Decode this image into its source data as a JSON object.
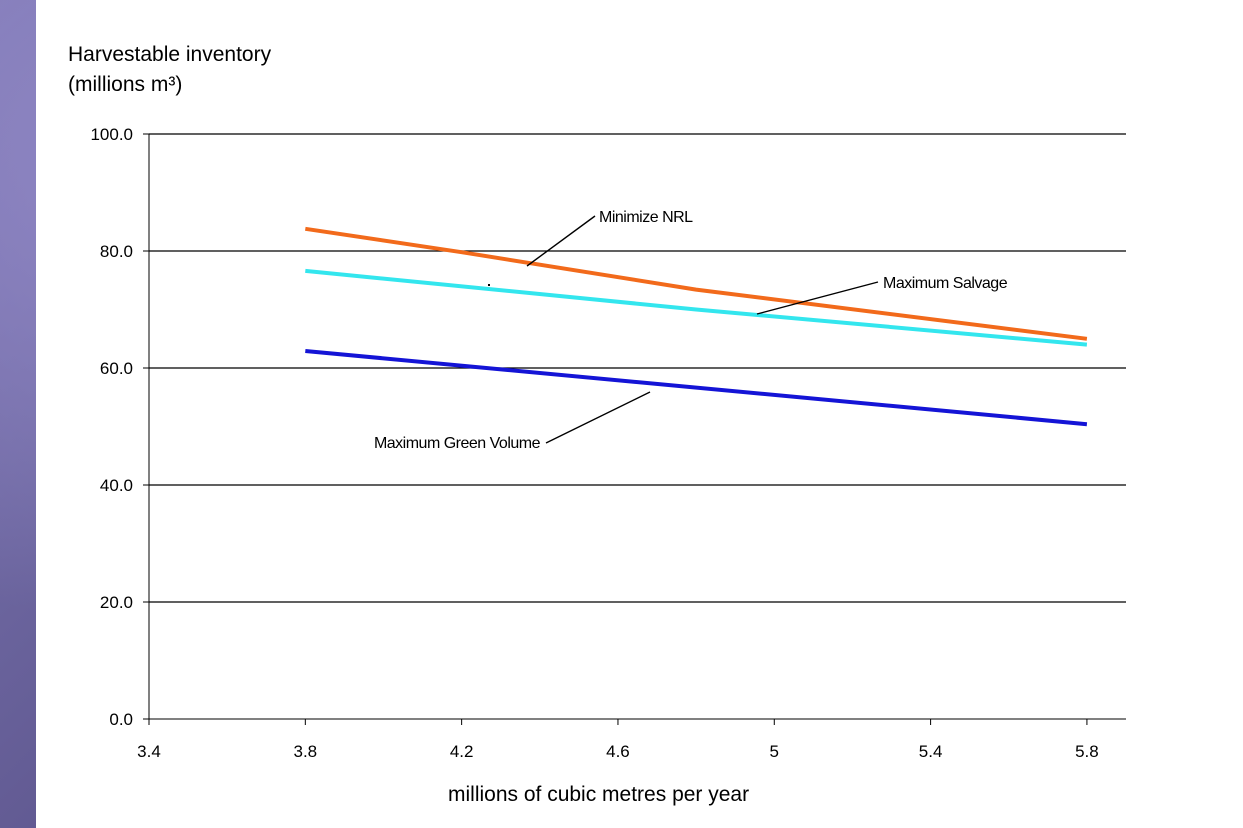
{
  "chart_data": {
    "type": "line",
    "title": "",
    "ylabel_lines": [
      "Harvestable inventory",
      "(millions m³)"
    ],
    "xlabel": "millions of cubic metres per year",
    "xlim": [
      3.4,
      5.9
    ],
    "ylim": [
      0,
      100
    ],
    "x_ticks": [
      "3.4",
      "3.8",
      "4.2",
      "4.6",
      "5",
      "5.4",
      "5.8"
    ],
    "y_ticks": [
      "0.0",
      "20.0",
      "40.0",
      "60.0",
      "80.0",
      "100.0"
    ],
    "grid": "horizontal",
    "legend": "none (line annotations)",
    "series": [
      {
        "name": "Minimize NRL",
        "color": "#f26a1b",
        "x": [
          3.8,
          4.2,
          4.8,
          5.8
        ],
        "y": [
          83.8,
          79.8,
          73.4,
          65.0
        ]
      },
      {
        "name": "Maximum Salvage",
        "color": "#33e6ee",
        "x": [
          3.8,
          4.8,
          5.8
        ],
        "y": [
          76.6,
          70.0,
          64.0
        ]
      },
      {
        "name": "Maximum Green Volume",
        "color": "#1414d6",
        "x": [
          3.8,
          5.8
        ],
        "y": [
          62.9,
          50.4
        ]
      }
    ],
    "annotations": [
      {
        "text": "Minimize NRL",
        "series": "Minimize NRL"
      },
      {
        "text": "Maximum Salvage",
        "series": "Maximum Salvage"
      },
      {
        "text": "Maximum Green Volume",
        "series": "Maximum Green Volume"
      }
    ]
  }
}
